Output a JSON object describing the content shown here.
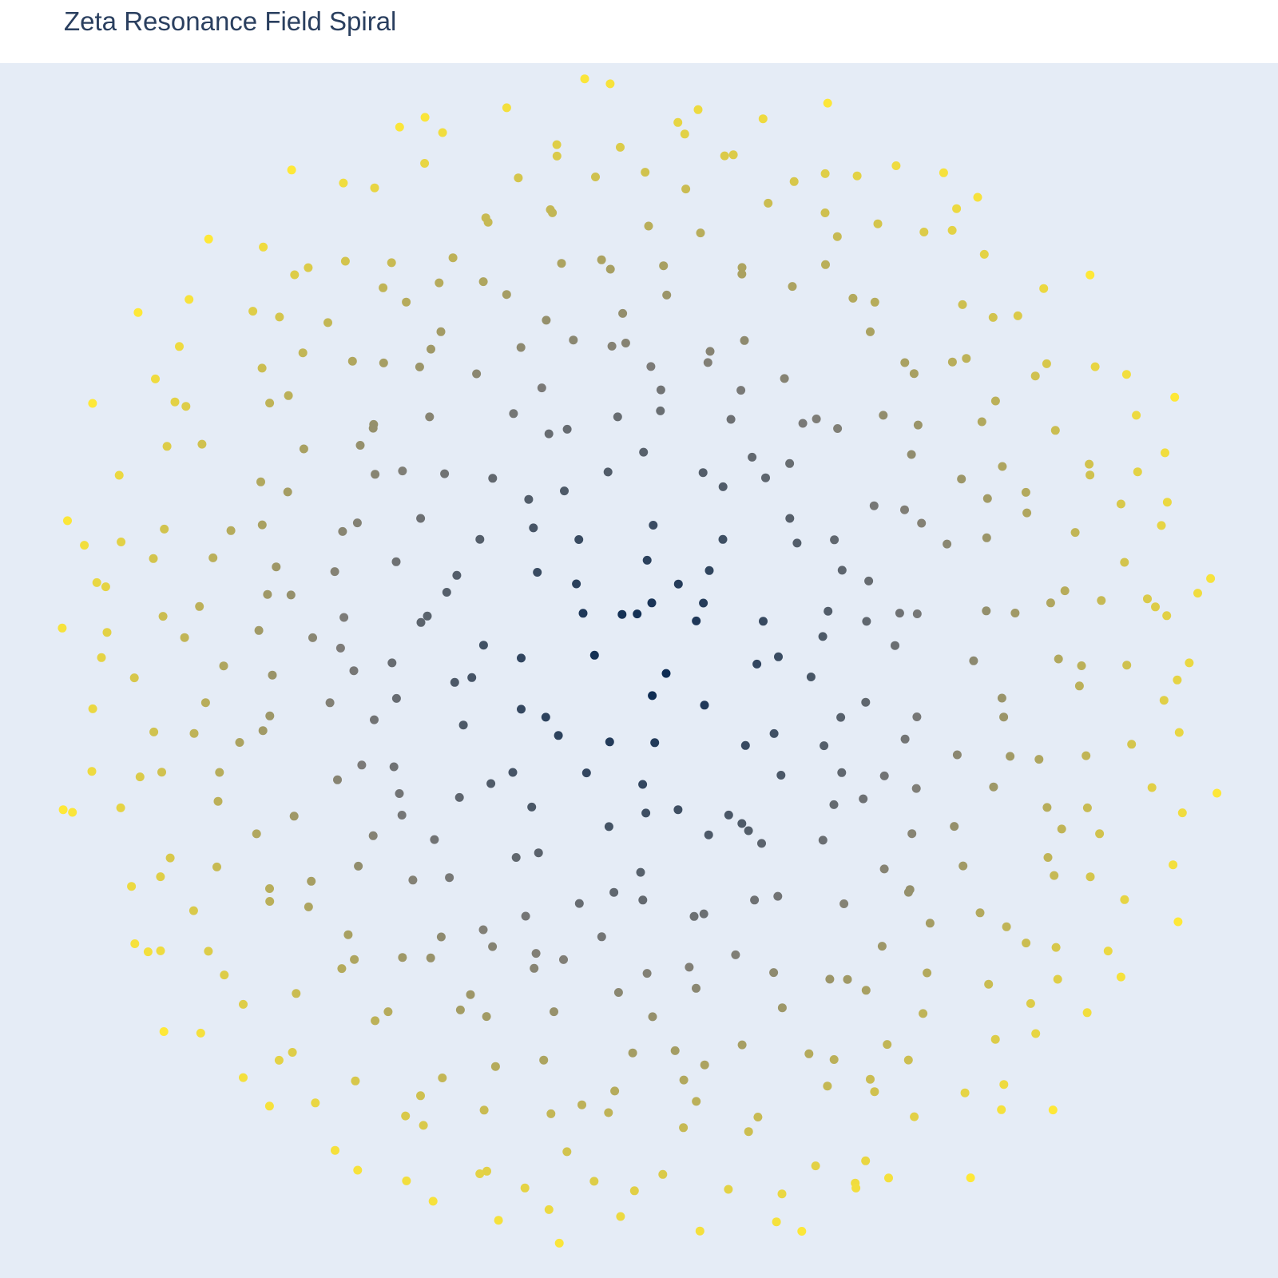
{
  "chart_data": {
    "type": "scatter",
    "title": "Zeta Resonance Field Spiral",
    "xlabel": "",
    "ylabel": "",
    "xlim": [
      -1.1,
      1.1
    ],
    "ylim": [
      -1.1,
      1.1
    ],
    "grid": false,
    "legend": "none",
    "marker_shape": "circle",
    "colorscale": [
      "#00224e",
      "#7c7b78",
      "#fee838"
    ],
    "n_points": 500,
    "point_distribution": "golden-angle spiral (sunflower pattern); radius grows with index, color follows radius",
    "jitter": 0.045
  }
}
